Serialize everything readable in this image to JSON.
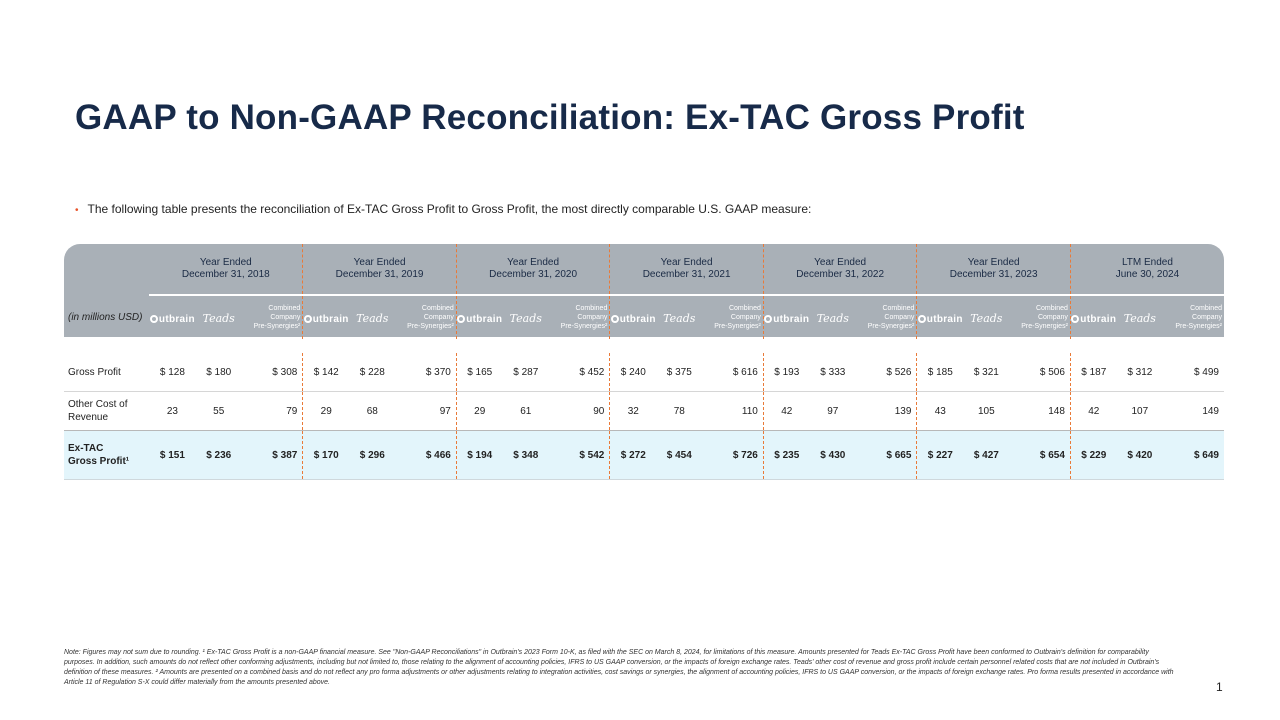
{
  "slide": {
    "title": "GAAP to Non-GAAP Reconciliation: Ex-TAC Gross Profit",
    "bullet": "The following table presents the reconciliation of Ex-TAC Gross Profit to Gross Profit, the most directly comparable U.S. GAAP measure:",
    "page_number": "1",
    "accent_color": "#e8532a",
    "title_color": "#172a49"
  },
  "table": {
    "units_label": "(in millions USD)",
    "logo_labels": {
      "outbrain": "utbrain",
      "teads": "Teads",
      "combined_l1": "Combined",
      "combined_l2": "Company",
      "combined_l3": "Pre-Synergies²"
    },
    "periods": [
      {
        "line1": "Year Ended",
        "line2": "December 31, 2018"
      },
      {
        "line1": "Year Ended",
        "line2": "December 31, 2019"
      },
      {
        "line1": "Year Ended",
        "line2": "December 31, 2020"
      },
      {
        "line1": "Year Ended",
        "line2": "December 31, 2021"
      },
      {
        "line1": "Year Ended",
        "line2": "December 31, 2022"
      },
      {
        "line1": "Year Ended",
        "line2": "December 31, 2023"
      },
      {
        "line1": "LTM Ended",
        "line2": "June 30, 2024"
      }
    ],
    "rows": [
      {
        "label": "Gross Profit",
        "values": [
          "$ 128",
          "$ 180",
          "$ 308",
          "$ 142",
          "$ 228",
          "$ 370",
          "$ 165",
          "$ 287",
          "$ 452",
          "$ 240",
          "$ 375",
          "$ 616",
          "$ 193",
          "$ 333",
          "$ 526",
          "$ 185",
          "$ 321",
          "$ 506",
          "$ 187",
          "$ 312",
          "$ 499"
        ]
      },
      {
        "label": "Other Cost of Revenue",
        "values": [
          "23",
          "55",
          "79",
          "29",
          "68",
          "97",
          "29",
          "61",
          "90",
          "32",
          "78",
          "110",
          "42",
          "97",
          "139",
          "43",
          "105",
          "148",
          "42",
          "107",
          "149"
        ]
      },
      {
        "label": "Ex-TAC Gross Profit¹",
        "values": [
          "$ 151",
          "$ 236",
          "$ 387",
          "$ 170",
          "$ 296",
          "$ 466",
          "$ 194",
          "$ 348",
          "$ 542",
          "$ 272",
          "$ 454",
          "$ 726",
          "$ 235",
          "$ 430",
          "$ 665",
          "$ 227",
          "$ 427",
          "$ 654",
          "$ 229",
          "$ 420",
          "$ 649"
        ]
      }
    ]
  },
  "footnote": "Note: Figures may not sum due to rounding. ¹ Ex-TAC Gross Profit is a non-GAAP financial measure. See \"Non-GAAP Reconciliations\" in Outbrain's 2023 Form 10-K, as filed with the SEC on March 8, 2024, for limitations of this measure. Amounts presented for Teads Ex-TAC Gross Profit have been conformed to Outbrain's definition for comparability purposes. In addition, such amounts do not reflect other conforming adjustments, including but not limited to, those relating to the alignment of accounting policies, IFRS to US GAAP conversion, or the impacts of foreign exchange rates. Teads' other cost of revenue and gross profit include certain personnel related costs that are not included in Outbrain's definition of these measures. ² Amounts are presented on a combined basis and do not reflect any pro forma adjustments or other adjustments relating to integration activities, cost savings or synergies, the alignment of accounting policies, IFRS to US GAAP conversion, or the impacts of foreign exchange rates. Pro forma results presented in accordance with Article 11 of Regulation S-X could differ materially from the amounts presented above."
}
